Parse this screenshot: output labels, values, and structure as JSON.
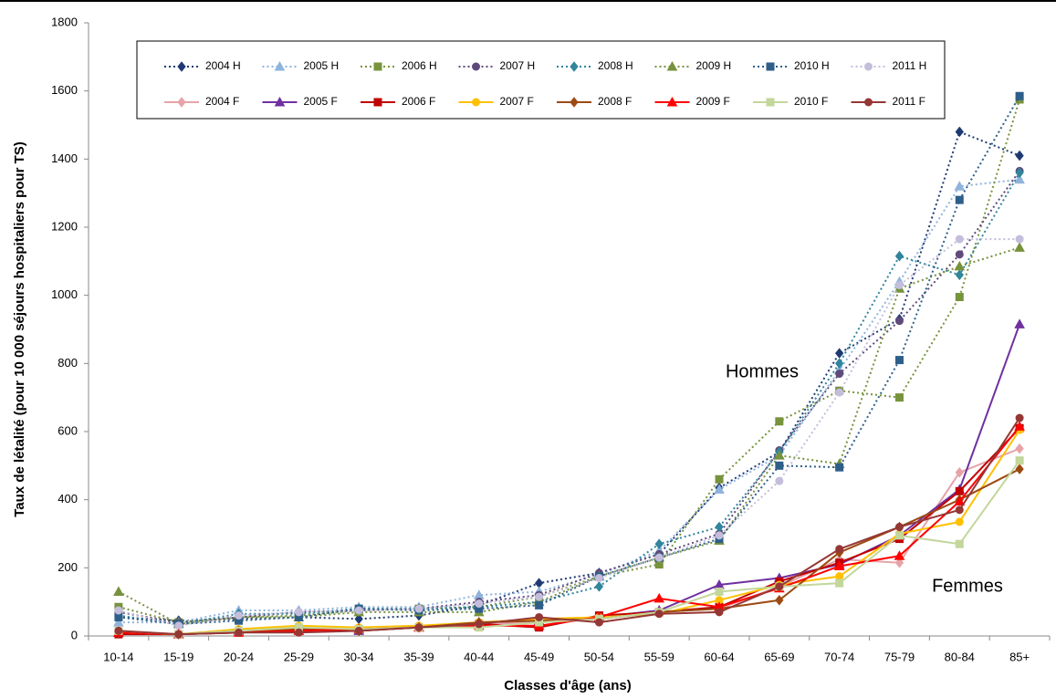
{
  "chart_data": {
    "type": "line",
    "x_label": "Classes d'âge (ans)",
    "y_label": "Taux de létalité (pour 10 000 séjours hospitaliers pour TS)",
    "annotations": [
      "Hommes",
      "Femmes"
    ],
    "categories": [
      "10-14",
      "15-19",
      "20-24",
      "25-29",
      "30-34",
      "35-39",
      "40-44",
      "45-49",
      "50-54",
      "55-59",
      "60-64",
      "65-69",
      "70-74",
      "75-79",
      "80-84",
      "85+"
    ],
    "ylim": [
      0,
      1800
    ],
    "yticks": [
      0,
      200,
      400,
      600,
      800,
      1000,
      1200,
      1400,
      1600,
      1800
    ],
    "grid": false,
    "series": [
      {
        "name": "2004 H",
        "color": "#1f3a73",
        "marker": "diamond",
        "dashed": true,
        "values": [
          55,
          45,
          50,
          55,
          50,
          60,
          90,
          155,
          185,
          240,
          435,
          540,
          830,
          930,
          1480,
          1410
        ]
      },
      {
        "name": "2005 H",
        "color": "#8fb4dc",
        "marker": "triangle",
        "dashed": true,
        "values": [
          40,
          40,
          75,
          75,
          85,
          85,
          120,
          130,
          180,
          250,
          430,
          530,
          780,
          1040,
          1320,
          1340
        ]
      },
      {
        "name": "2006 H",
        "color": "#77933c",
        "marker": "square",
        "dashed": true,
        "values": [
          85,
          40,
          55,
          60,
          75,
          80,
          85,
          115,
          175,
          210,
          460,
          630,
          720,
          700,
          995,
          1575
        ]
      },
      {
        "name": "2007 H",
        "color": "#604a7b",
        "marker": "circle",
        "dashed": true,
        "values": [
          70,
          40,
          55,
          70,
          75,
          80,
          100,
          120,
          185,
          240,
          300,
          545,
          770,
          925,
          1120,
          1365
        ]
      },
      {
        "name": "2008 H",
        "color": "#31859c",
        "marker": "diamond",
        "dashed": true,
        "values": [
          60,
          35,
          65,
          65,
          80,
          80,
          85,
          100,
          145,
          270,
          320,
          540,
          800,
          1115,
          1060,
          1360
        ]
      },
      {
        "name": "2009 H",
        "color": "#76923c",
        "marker": "triangle",
        "dashed": true,
        "values": [
          130,
          35,
          55,
          55,
          70,
          70,
          70,
          100,
          175,
          230,
          280,
          530,
          505,
          1020,
          1085,
          1140
        ]
      },
      {
        "name": "2010 H",
        "color": "#2e5f8a",
        "marker": "square",
        "dashed": true,
        "values": [
          55,
          35,
          45,
          55,
          80,
          75,
          80,
          90,
          175,
          230,
          285,
          500,
          495,
          810,
          1280,
          1585
        ]
      },
      {
        "name": "2011 H",
        "color": "#c4bddb",
        "marker": "circle",
        "dashed": true,
        "values": [
          75,
          30,
          60,
          70,
          75,
          80,
          95,
          115,
          170,
          230,
          295,
          455,
          715,
          1030,
          1165,
          1165
        ]
      },
      {
        "name": "2004 F",
        "color": "#e6a3a8",
        "marker": "diamond",
        "dashed": false,
        "values": [
          15,
          5,
          15,
          25,
          20,
          25,
          35,
          40,
          50,
          70,
          80,
          145,
          225,
          215,
          480,
          550
        ]
      },
      {
        "name": "2005 F",
        "color": "#7030a0",
        "marker": "triangle",
        "dashed": false,
        "values": [
          10,
          5,
          15,
          20,
          15,
          25,
          40,
          45,
          55,
          75,
          150,
          170,
          210,
          295,
          430,
          915
        ]
      },
      {
        "name": "2006 F",
        "color": "#c00000",
        "marker": "square",
        "dashed": false,
        "values": [
          5,
          5,
          10,
          20,
          20,
          25,
          35,
          25,
          60,
          70,
          85,
          160,
          215,
          285,
          425,
          610
        ]
      },
      {
        "name": "2007 F",
        "color": "#ffc000",
        "marker": "circle",
        "dashed": false,
        "values": [
          10,
          5,
          20,
          30,
          25,
          30,
          40,
          50,
          55,
          65,
          105,
          150,
          175,
          300,
          335,
          605
        ]
      },
      {
        "name": "2008 F",
        "color": "#9c4a12",
        "marker": "diamond",
        "dashed": false,
        "values": [
          10,
          5,
          15,
          20,
          15,
          25,
          40,
          45,
          50,
          70,
          80,
          105,
          245,
          320,
          400,
          490
        ]
      },
      {
        "name": "2009 F",
        "color": "#ff0000",
        "marker": "triangle",
        "dashed": false,
        "values": [
          10,
          5,
          10,
          15,
          20,
          25,
          30,
          30,
          55,
          110,
          85,
          140,
          205,
          235,
          395,
          615
        ]
      },
      {
        "name": "2010 F",
        "color": "#c3d69b",
        "marker": "square",
        "dashed": false,
        "values": [
          15,
          5,
          15,
          25,
          20,
          25,
          25,
          40,
          50,
          70,
          130,
          145,
          155,
          295,
          270,
          515
        ]
      },
      {
        "name": "2011 F",
        "color": "#953735",
        "marker": "circle",
        "dashed": false,
        "values": [
          15,
          5,
          10,
          10,
          15,
          25,
          35,
          55,
          40,
          65,
          70,
          145,
          255,
          320,
          370,
          640
        ]
      }
    ]
  }
}
